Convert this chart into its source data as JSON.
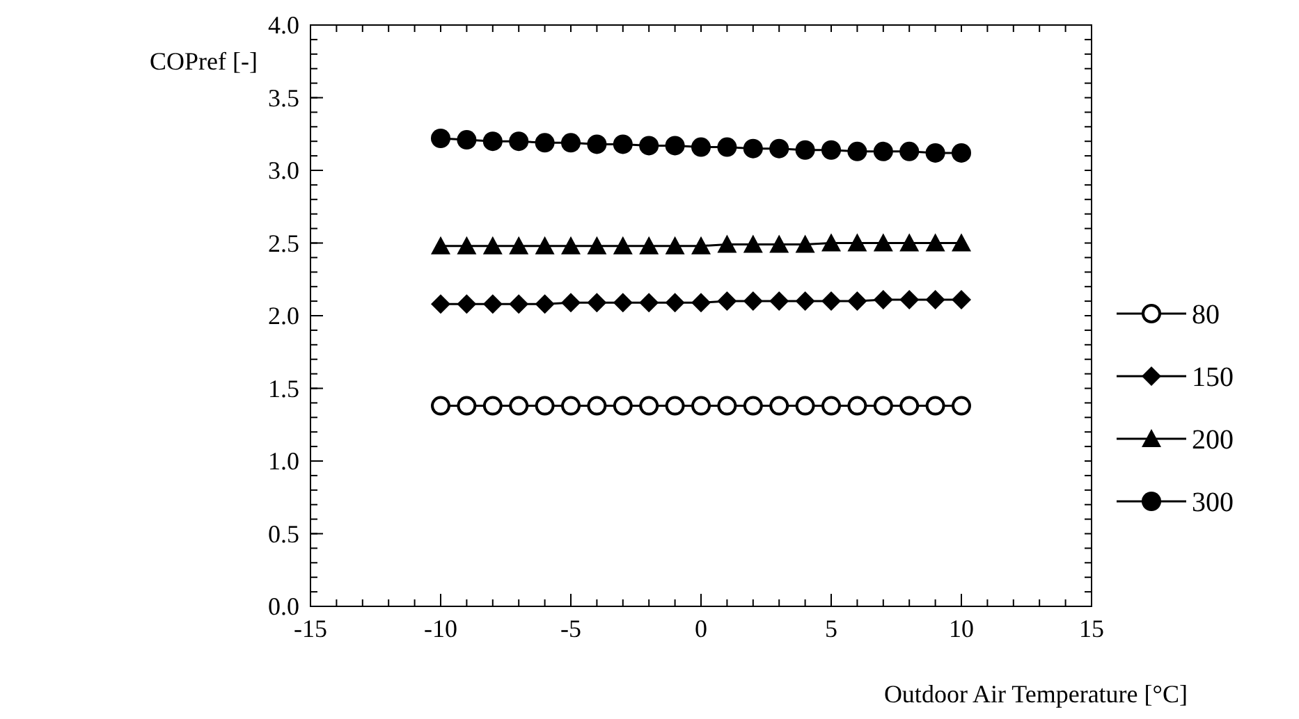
{
  "chart_data": {
    "type": "line",
    "xlabel": "Outdoor Air Temperature  [°C]",
    "ylabel": "COPref [-]",
    "x": [
      -10,
      -9,
      -8,
      -7,
      -6,
      -5,
      -4,
      -3,
      -2,
      -1,
      0,
      1,
      2,
      3,
      4,
      5,
      6,
      7,
      8,
      9,
      10
    ],
    "series": [
      {
        "name": "80",
        "color": "#000000",
        "marker": "circle",
        "values": [
          1.38,
          1.38,
          1.38,
          1.38,
          1.38,
          1.38,
          1.38,
          1.38,
          1.38,
          1.38,
          1.38,
          1.38,
          1.38,
          1.38,
          1.38,
          1.38,
          1.38,
          1.38,
          1.38,
          1.38,
          1.38
        ]
      },
      {
        "name": "150",
        "color": "#000000",
        "marker": "diamond",
        "values": [
          2.08,
          2.08,
          2.08,
          2.08,
          2.08,
          2.09,
          2.09,
          2.09,
          2.09,
          2.09,
          2.09,
          2.1,
          2.1,
          2.1,
          2.1,
          2.1,
          2.1,
          2.11,
          2.11,
          2.11,
          2.11
        ]
      },
      {
        "name": "200",
        "color": "#000000",
        "marker": "triangle",
        "values": [
          2.48,
          2.48,
          2.48,
          2.48,
          2.48,
          2.48,
          2.48,
          2.48,
          2.48,
          2.48,
          2.48,
          2.49,
          2.49,
          2.49,
          2.49,
          2.5,
          2.5,
          2.5,
          2.5,
          2.5,
          2.5
        ]
      },
      {
        "name": "300",
        "color": "#000000",
        "marker": "circle",
        "values": [
          3.22,
          3.21,
          3.2,
          3.2,
          3.19,
          3.19,
          3.18,
          3.18,
          3.17,
          3.17,
          3.16,
          3.16,
          3.15,
          3.15,
          3.14,
          3.14,
          3.13,
          3.13,
          3.13,
          3.12,
          3.12
        ]
      }
    ],
    "xlim": [
      -15,
      15
    ],
    "xticks": [
      -15,
      -10,
      -5,
      0,
      5,
      10,
      15
    ],
    "ylim": [
      0,
      4
    ],
    "yticks": [
      {
        "value": 0,
        "label": "0.0"
      },
      {
        "value": 0.5,
        "label": "0.5"
      },
      {
        "value": 1,
        "label": "1.0"
      },
      {
        "value": 1.5,
        "label": "1.5"
      },
      {
        "value": 2,
        "label": "2.0"
      },
      {
        "value": 2.5,
        "label": "2.5"
      },
      {
        "value": 3,
        "label": "3.0"
      },
      {
        "value": 3.5,
        "label": "3.5"
      },
      {
        "value": 4,
        "label": "4.0"
      }
    ],
    "grid": false,
    "legend": "right",
    "line_style": "solid"
  }
}
